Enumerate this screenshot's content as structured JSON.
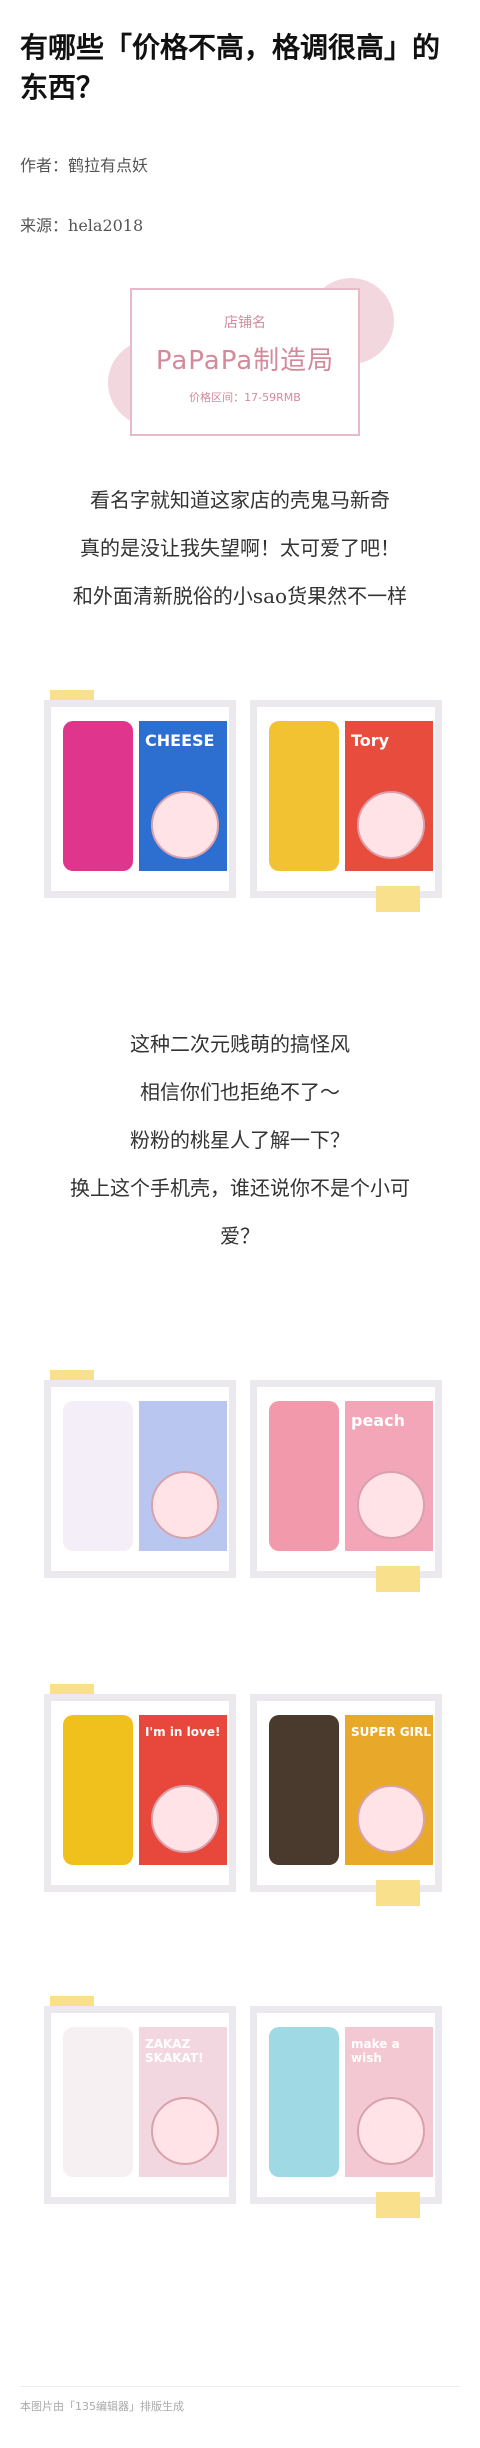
{
  "article": {
    "title": "有哪些「价格不高，格调很高」的东西？",
    "author_label": "作者：",
    "author": "鹤拉有点妖",
    "source_label": "来源：",
    "source": "hela2018"
  },
  "shop_card": {
    "label": "店铺名",
    "name": "PaPaPa制造局",
    "price_label": "价格区间",
    "price_range": "17-59RMB"
  },
  "paragraph_1": [
    "看名字就知道这家店的壳鬼马新奇",
    "真的是没让我失望啊！太可爱了吧！",
    "和外面清新脱俗的小sao货果然不一样"
  ],
  "paragraph_2": [
    "这种二次元贱萌的搞怪风",
    "相信你们也拒绝不了～",
    "粉粉的桃星人了解一下？",
    "换上这个手机壳，谁还说你不是个小可",
    "爱？"
  ],
  "images": [
    {
      "word": "CHEESE",
      "bg": "#2d6fd0",
      "phone": "#e0358c"
    },
    {
      "word": "Tory",
      "bg": "#e84c3d",
      "phone": "#f2c233"
    },
    {
      "word": "",
      "bg": "#b9c7f0",
      "phone": "#f3eef7"
    },
    {
      "word": "peach",
      "bg": "#f2a6b8",
      "phone": "#f29aab"
    },
    {
      "word": "I'm in love!",
      "bg": "#e8473c",
      "phone": "#f0c11c"
    },
    {
      "word": "SUPER GIRL",
      "bg": "#e8a82a",
      "phone": "#4a3a2e"
    },
    {
      "word": "ZAKAZ SKAKAT!",
      "bg": "#f2d7e0",
      "phone": "#f6f0f3"
    },
    {
      "word": "make a wish",
      "bg": "#f4c8d2",
      "phone": "#9fd9e3"
    }
  ],
  "footer": "本图片由「135编辑器」排版生成"
}
